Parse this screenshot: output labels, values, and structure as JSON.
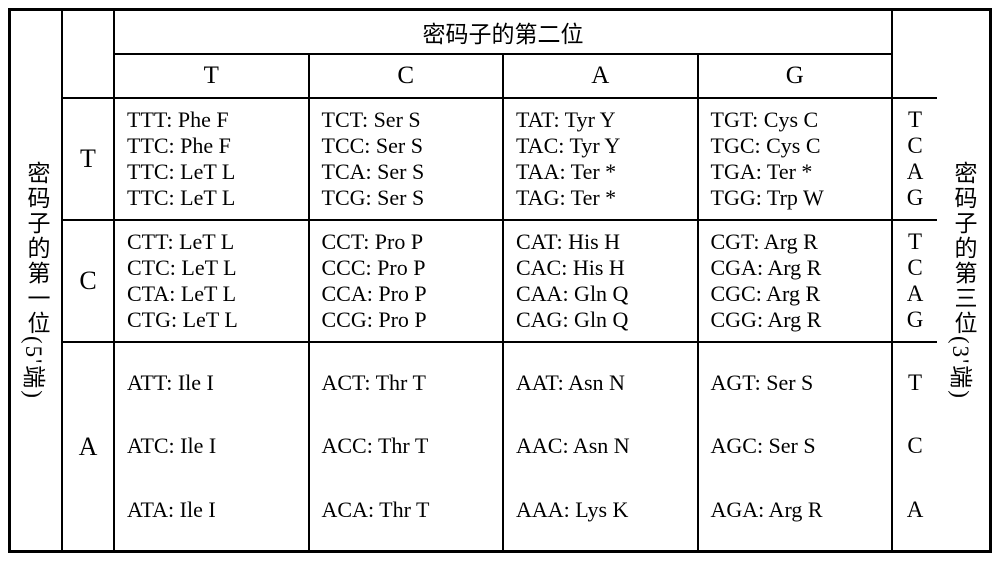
{
  "labels": {
    "first_position": "密码子的第一位",
    "first_position_suffix": "(5'端)",
    "second_position": "密码子的第二位",
    "third_position": "密码子的第三位",
    "third_position_suffix": "(3'端)"
  },
  "second_headers": [
    "T",
    "C",
    "A",
    "G"
  ],
  "groups": [
    {
      "first": "T",
      "third": [
        "T",
        "C",
        "A",
        "G"
      ],
      "cols": [
        [
          "TTT:  Phe  F",
          "TTC:  Phe  F",
          "TTC:  LeT  L",
          "TTC:  LeT  L"
        ],
        [
          "TCT:  Ser  S",
          "TCC:  Ser  S",
          "TCA:  Ser  S",
          "TCG:  Ser  S"
        ],
        [
          "TAT:  Tyr  Y",
          "TAC:  Tyr  Y",
          "TAA:  Ter  *",
          "TAG:  Ter  *"
        ],
        [
          "TGT:  Cys  C",
          "TGC:  Cys  C",
          "TGA:  Ter  *",
          "TGG:  Trp  W"
        ]
      ]
    },
    {
      "first": "C",
      "third": [
        "T",
        "C",
        "A",
        "G"
      ],
      "cols": [
        [
          "CTT:  LeT  L",
          "CTC:  LeT  L",
          "CTA:  LeT  L",
          "CTG:  LeT  L"
        ],
        [
          "CCT:  Pro  P",
          "CCC:  Pro  P",
          "CCA:  Pro  P",
          "CCG:  Pro  P"
        ],
        [
          "CAT:  His H",
          "CAC:  His H",
          "CAA:  Gln Q",
          "CAG:  Gln Q"
        ],
        [
          "CGT:  Arg  R",
          "CGA:  Arg  R",
          "CGC:  Arg  R",
          "CGG:  Arg  R"
        ]
      ]
    },
    {
      "first": "A",
      "third": [
        "T",
        "C",
        "A"
      ],
      "cols": [
        [
          "ATT:  Ile  I",
          "ATC:  Ile  I",
          "ATA:  Ile  I"
        ],
        [
          "ACT:  Thr  T",
          "ACC:  Thr  T",
          "ACA:  Thr  T"
        ],
        [
          "AAT:  Asn N",
          "AAC:  Asn N",
          "AAA:  Lys K"
        ],
        [
          "AGT:  Ser  S",
          "AGC:  Ser  S",
          "AGA:  Arg  R"
        ]
      ]
    }
  ],
  "style": {
    "border_color": "#000000",
    "background": "#ffffff",
    "font_family": "Times New Roman",
    "cell_fontsize": 22,
    "label_fontsize": 23,
    "header_fontsize": 25
  }
}
